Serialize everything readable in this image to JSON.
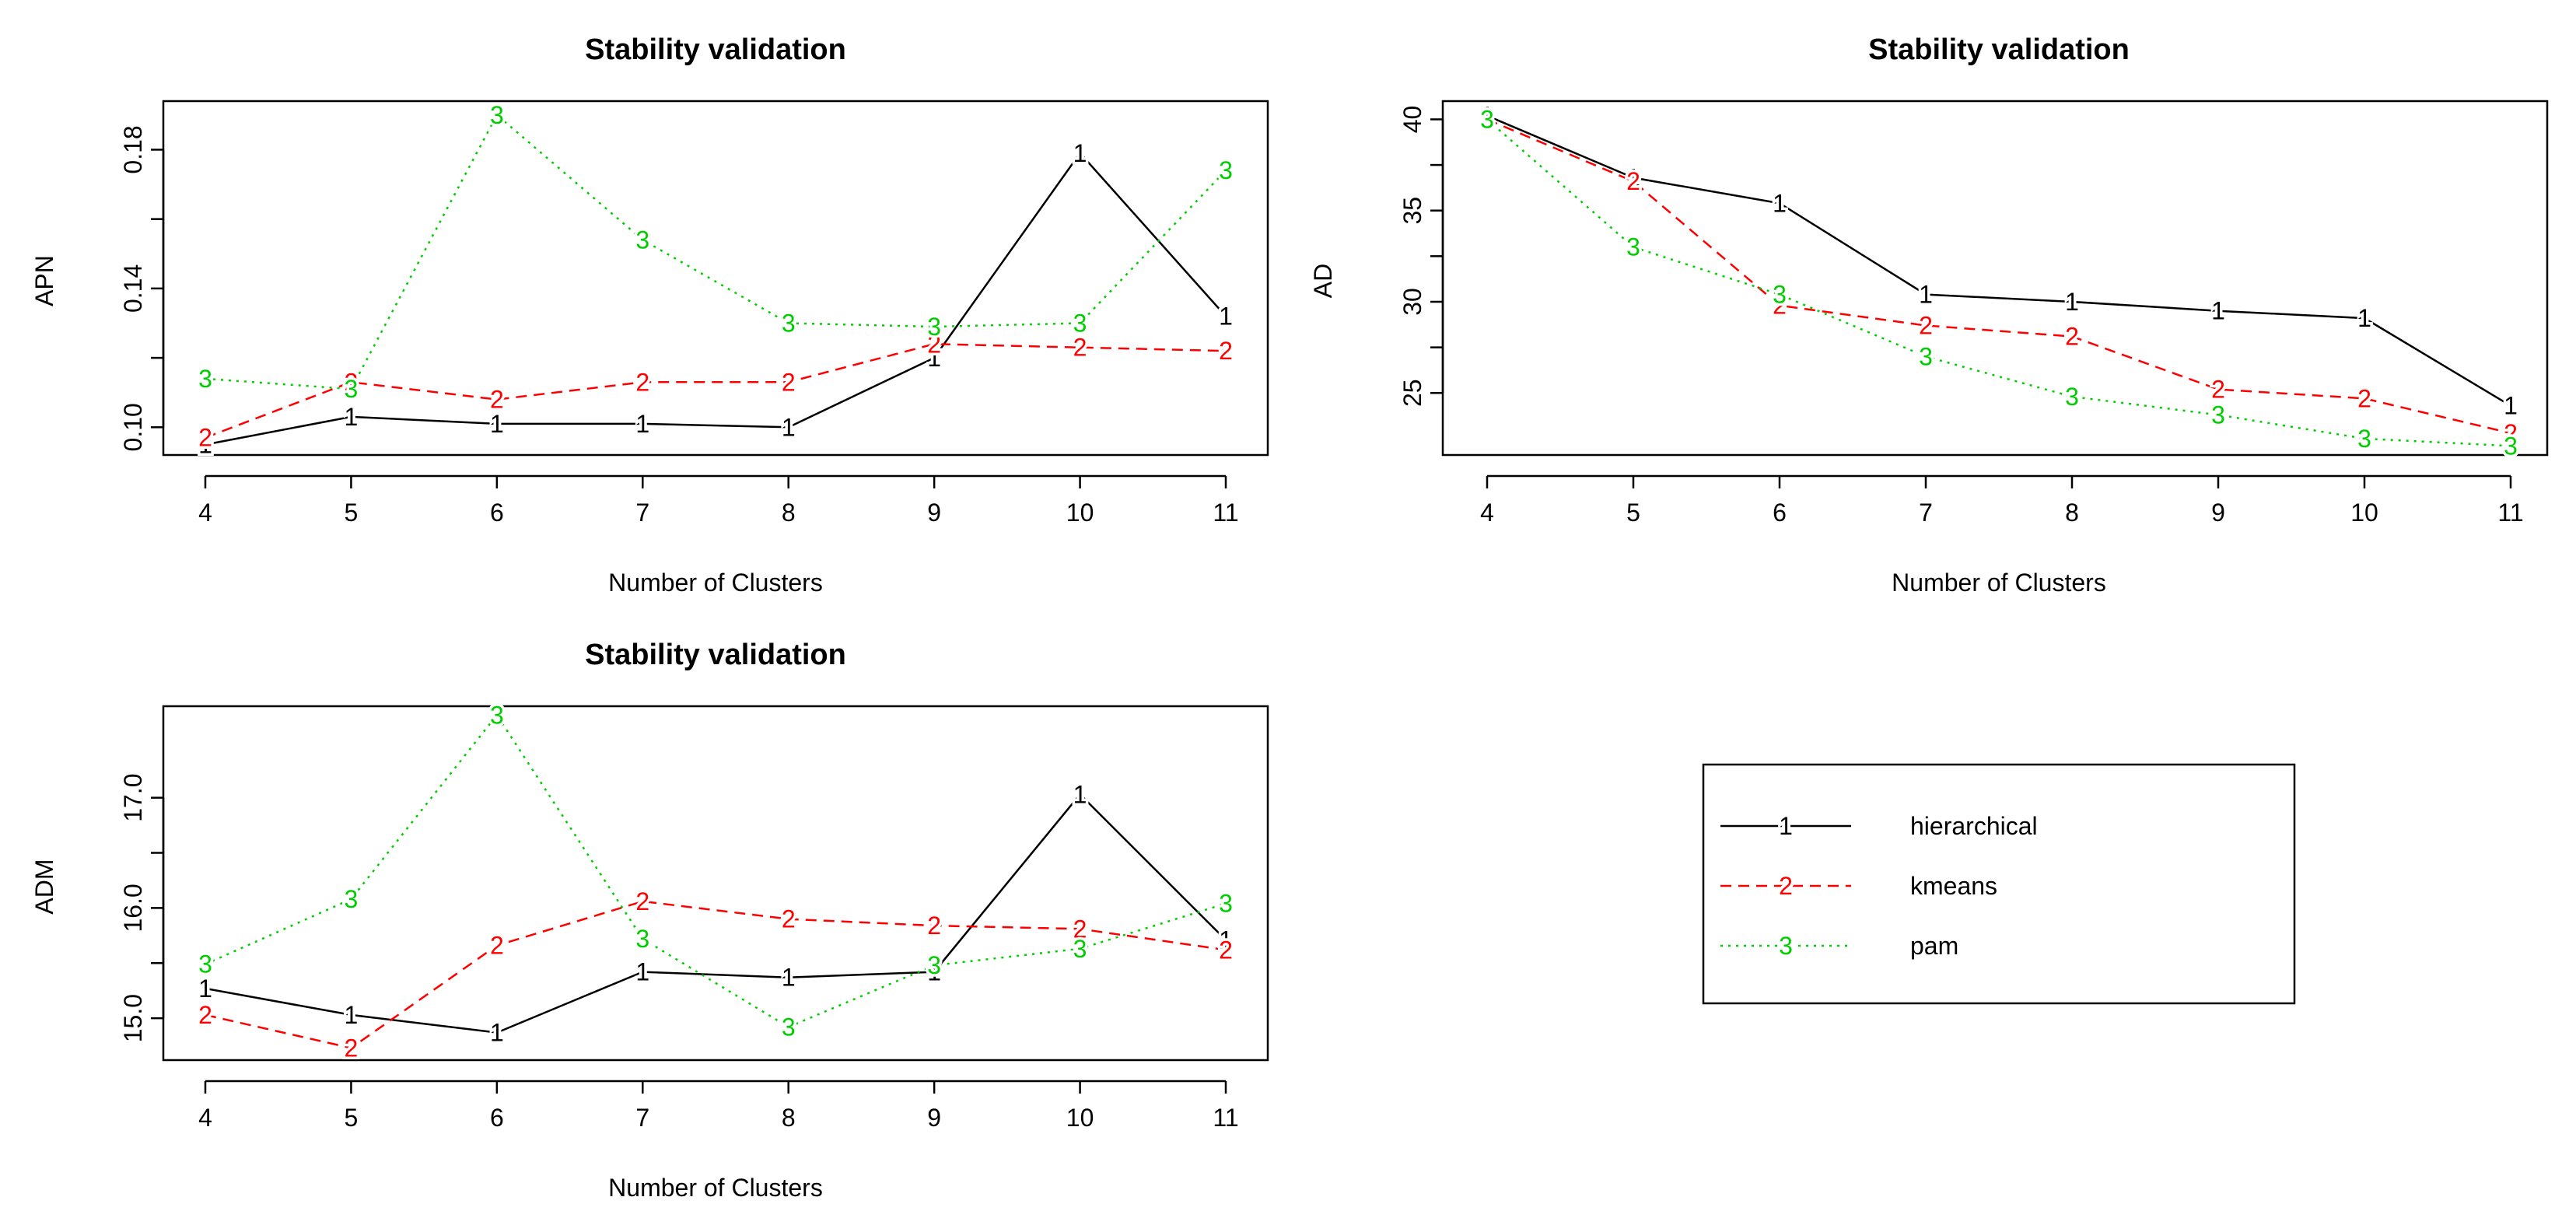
{
  "colors": {
    "hierarchical": "#000000",
    "kmeans": "#ff0000",
    "pam": "#00cd00"
  },
  "legend": {
    "entries": [
      {
        "symbol": "1",
        "label": "hierarchical",
        "dash": "solid"
      },
      {
        "symbol": "2",
        "label": "kmeans",
        "dash": "dashed"
      },
      {
        "symbol": "3",
        "label": "pam",
        "dash": "dotted"
      }
    ]
  },
  "chart_data": [
    {
      "type": "line",
      "title": "Stability validation",
      "xlabel": "Number of Clusters",
      "ylabel": "APN",
      "categories": [
        4,
        5,
        6,
        7,
        8,
        9,
        10,
        11
      ],
      "ylim": [
        0.092,
        0.194
      ],
      "yticks": [
        "0.10",
        "0.14",
        "0.18"
      ],
      "series": [
        {
          "name": "hierarchical",
          "symbol": "1",
          "values": [
            0.095,
            0.103,
            0.101,
            0.101,
            0.1,
            0.12,
            0.179,
            0.132
          ]
        },
        {
          "name": "kmeans",
          "symbol": "2",
          "values": [
            0.097,
            0.113,
            0.108,
            0.113,
            0.113,
            0.124,
            0.123,
            0.122
          ]
        },
        {
          "name": "pam",
          "symbol": "3",
          "values": [
            0.114,
            0.111,
            0.19,
            0.154,
            0.13,
            0.129,
            0.13,
            0.174
          ]
        }
      ]
    },
    {
      "type": "line",
      "title": "Stability validation",
      "xlabel": "Number of Clusters",
      "ylabel": "AD",
      "categories": [
        4,
        5,
        6,
        7,
        8,
        9,
        10,
        11
      ],
      "ylim": [
        21.6,
        41.0
      ],
      "yticks": [
        "25",
        "30",
        "35",
        "40"
      ],
      "series": [
        {
          "name": "hierarchical",
          "symbol": "1",
          "values": [
            40.2,
            36.8,
            35.4,
            30.4,
            30.0,
            29.5,
            29.1,
            24.3
          ]
        },
        {
          "name": "kmeans",
          "symbol": "2",
          "values": [
            40.0,
            36.6,
            29.8,
            28.7,
            28.1,
            25.2,
            24.7,
            22.8
          ]
        },
        {
          "name": "pam",
          "symbol": "3",
          "values": [
            40.0,
            33.0,
            30.4,
            27.0,
            24.8,
            23.8,
            22.5,
            22.1
          ]
        }
      ]
    },
    {
      "type": "line",
      "title": "Stability validation",
      "xlabel": "Number of Clusters",
      "ylabel": "ADM",
      "categories": [
        4,
        5,
        6,
        7,
        8,
        9,
        10,
        11
      ],
      "ylim": [
        14.62,
        17.83
      ],
      "yticks": [
        "15.0",
        "16.0",
        "17.0"
      ],
      "series": [
        {
          "name": "hierarchical",
          "symbol": "1",
          "values": [
            15.27,
            15.03,
            14.87,
            15.42,
            15.37,
            15.42,
            17.03,
            15.71
          ]
        },
        {
          "name": "kmeans",
          "symbol": "2",
          "values": [
            15.03,
            14.73,
            15.66,
            16.06,
            15.9,
            15.84,
            15.81,
            15.62
          ]
        },
        {
          "name": "pam",
          "symbol": "3",
          "values": [
            15.49,
            16.08,
            17.75,
            15.72,
            14.92,
            15.48,
            15.63,
            16.04
          ]
        }
      ]
    }
  ]
}
